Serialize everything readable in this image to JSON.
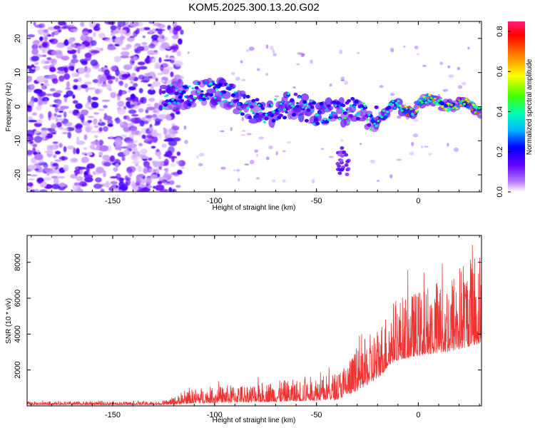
{
  "title": "KOM5.2025.300.13.20.G02",
  "chart_data": [
    {
      "type": "heatmap",
      "name": "spectrogram",
      "xlabel": "Height of straight line (km)",
      "ylabel": "Frequency (Hz)",
      "xlim": [
        -192,
        31
      ],
      "ylim": [
        -25,
        25
      ],
      "xticks": [
        -150,
        -100,
        -50,
        0
      ],
      "yticks": [
        -20,
        -10,
        0,
        10,
        20
      ],
      "colorbar": {
        "label": "Normalized spectral amplitude",
        "range": [
          0,
          0.85
        ],
        "ticks": [
          0.0,
          0.2,
          0.4,
          0.6,
          0.8
        ],
        "colors": [
          "#ffffff",
          "#b478ff",
          "#6000ff",
          "#0000ff",
          "#00b4ff",
          "#00ffb4",
          "#40ff00",
          "#ffff00",
          "#ff8000",
          "#ff0000",
          "#ff2080"
        ]
      },
      "features": [
        {
          "label": "background noise (scattered)",
          "x_range": [
            -192,
            -122
          ],
          "y_range": [
            -25,
            25
          ],
          "amplitude": 0.2
        },
        {
          "label": "signal track",
          "points": [
            [
              -125,
              3
            ],
            [
              -110,
              4
            ],
            [
              -95,
              4
            ],
            [
              -85,
              0
            ],
            [
              -75,
              -2
            ],
            [
              -62,
              1
            ],
            [
              -50,
              -2
            ],
            [
              -40,
              -2
            ],
            [
              -32,
              -1
            ],
            [
              -22,
              -4
            ],
            [
              -10,
              0
            ],
            [
              0,
              0
            ],
            [
              10,
              2
            ],
            [
              20,
              0
            ],
            [
              31,
              0
            ]
          ],
          "amplitude": 0.85
        }
      ]
    },
    {
      "type": "line",
      "name": "snr",
      "xlabel": "Height of straight line (km)",
      "ylabel": "SNR (10 * v/v)",
      "xlim": [
        -192,
        31
      ],
      "ylim": [
        0,
        9500
      ],
      "xticks": [
        -150,
        -100,
        -50,
        0
      ],
      "yticks": [
        2000,
        4000,
        6000,
        8000
      ],
      "color": "#ee3333",
      "envelope": [
        {
          "x": -192,
          "baseline": 60,
          "peak": 250
        },
        {
          "x": -125,
          "baseline": 60,
          "peak": 250
        },
        {
          "x": -110,
          "baseline": 150,
          "peak": 1000
        },
        {
          "x": -90,
          "baseline": 200,
          "peak": 1200
        },
        {
          "x": -60,
          "baseline": 250,
          "peak": 1500
        },
        {
          "x": -40,
          "baseline": 350,
          "peak": 1900
        },
        {
          "x": -32,
          "baseline": 700,
          "peak": 3000
        },
        {
          "x": -20,
          "baseline": 1500,
          "peak": 4500
        },
        {
          "x": -12,
          "baseline": 2500,
          "peak": 6000
        },
        {
          "x": 0,
          "baseline": 2800,
          "peak": 6500
        },
        {
          "x": 15,
          "baseline": 3000,
          "peak": 7500
        },
        {
          "x": 31,
          "baseline": 3500,
          "peak": 9200
        }
      ]
    }
  ]
}
